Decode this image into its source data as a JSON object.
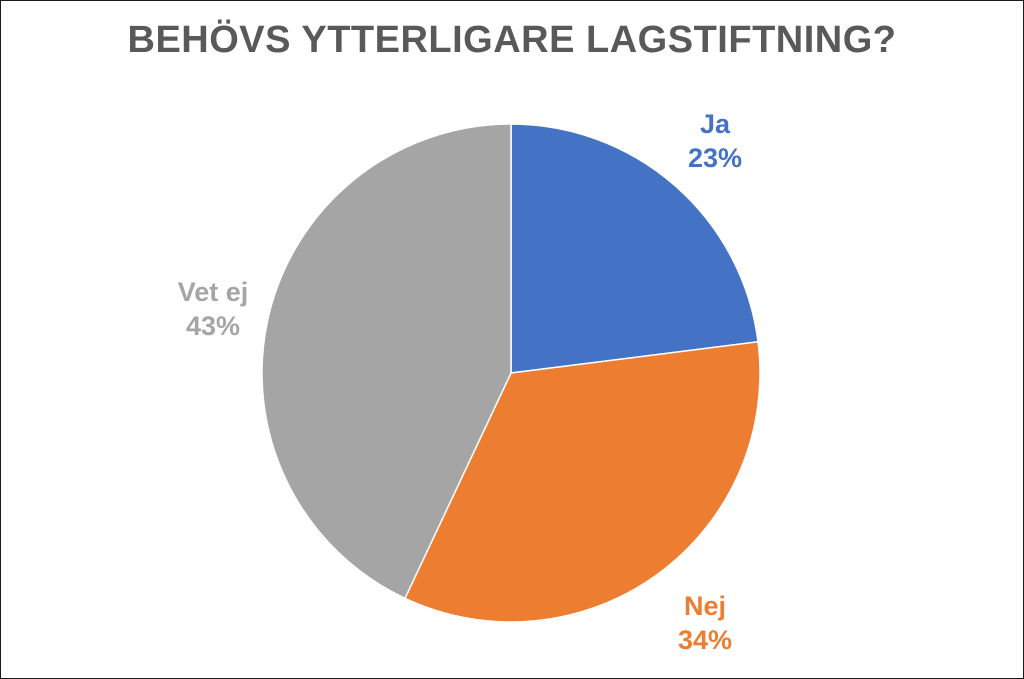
{
  "chart_data": {
    "type": "pie",
    "title": "BEHÖVS YTTERLIGARE LAGSTIFTNING?",
    "categories": [
      "Ja",
      "Nej",
      "Vet ej"
    ],
    "values": [
      23,
      34,
      43
    ],
    "value_labels": [
      "23%",
      "34%",
      "43%"
    ],
    "colors": [
      "#4472C4",
      "#ED7D31",
      "#A5A5A5"
    ],
    "start_angle_deg": 0,
    "direction": "clockwise",
    "legend": "none"
  }
}
